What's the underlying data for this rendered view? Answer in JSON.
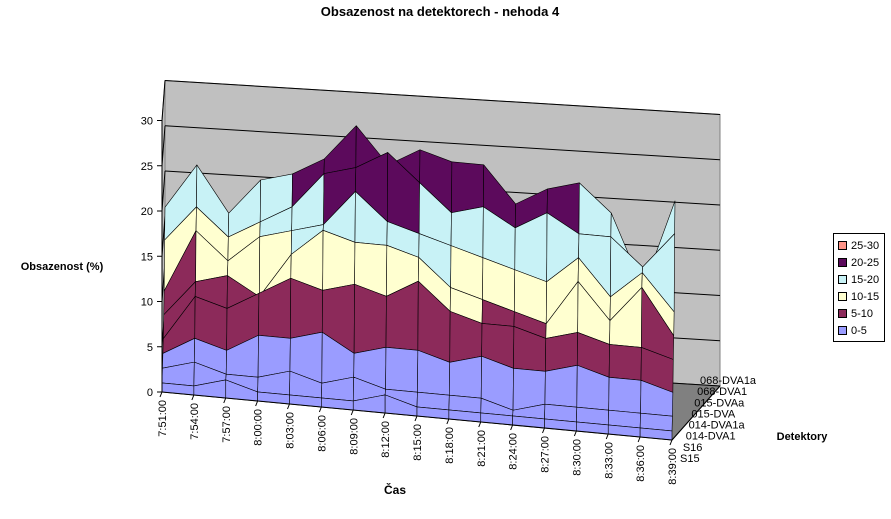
{
  "chart_data": {
    "type": "area",
    "subtype": "3d-surface",
    "title": "Obsazenost na detektorech - nehoda 4",
    "xlabel": "Čas",
    "ylabel": "Obsazenost (%)",
    "zlabel": "Detektory",
    "ylim": [
      0,
      30
    ],
    "yticks": [
      "0",
      "5",
      "10",
      "15",
      "20",
      "25",
      "30"
    ],
    "grid": true,
    "legend_position": "right",
    "categories": [
      "7:51:00",
      "7:54:00",
      "7:57:00",
      "8:00:00",
      "8:03:00",
      "8:06:00",
      "8:09:00",
      "8:12:00",
      "8:15:00",
      "8:18:00",
      "8:21:00",
      "8:24:00",
      "8:27:00",
      "8:30:00",
      "8:33:00",
      "8:36:00",
      "8:39:00"
    ],
    "detectors": [
      "S15",
      "S16",
      "014-DVA1",
      "014-DVA1a",
      "015-DVA",
      "015-DVAa",
      "068-DVA1",
      "068-DVA1a"
    ],
    "bands": [
      {
        "label": "25-30",
        "color": "#ff9488"
      },
      {
        "label": "20-25",
        "color": "#5c0a5c"
      },
      {
        "label": "15-20",
        "color": "#c8f2f6"
      },
      {
        "label": "10-15",
        "color": "#ffffd0"
      },
      {
        "label": "5-10",
        "color": "#8c2a5a"
      },
      {
        "label": "0-5",
        "color": "#9a9cff"
      }
    ],
    "series": [
      {
        "name": "068-DVA1a",
        "values": [
          16,
          21,
          16,
          20,
          21,
          23,
          27,
          23,
          25,
          24,
          24,
          20,
          22,
          23,
          20,
          12,
          22
        ]
      },
      {
        "name": "068-DVA1",
        "values": [
          13,
          17,
          14,
          16,
          18,
          22,
          23,
          25,
          22,
          19,
          20,
          18,
          20,
          18,
          18,
          15,
          19
        ]
      },
      {
        "name": "015-DVAa",
        "values": [
          8,
          15,
          12,
          15,
          16,
          17,
          21,
          18,
          17,
          16,
          15,
          14,
          13,
          16,
          12,
          15,
          11
        ]
      },
      {
        "name": "015-DVA",
        "values": [
          6,
          10,
          11,
          9,
          14,
          17,
          16,
          16,
          15,
          12,
          11,
          10,
          9,
          14,
          10,
          14,
          9
        ]
      },
      {
        "name": "014-DVA1a",
        "values": [
          4,
          9,
          8,
          10,
          12,
          11,
          12,
          11,
          13,
          10,
          9,
          9,
          8,
          9,
          8,
          8,
          7
        ]
      },
      {
        "name": "014-DVA1",
        "values": [
          3,
          5,
          4,
          6,
          6,
          7,
          5,
          6,
          6,
          5,
          6,
          5,
          5,
          6,
          5,
          5,
          4
        ]
      },
      {
        "name": "S16",
        "values": [
          2,
          3,
          2,
          2,
          3,
          2,
          3,
          2,
          2,
          2,
          2,
          1,
          2,
          2,
          2,
          2,
          2
        ]
      },
      {
        "name": "S15",
        "values": [
          1,
          1,
          2,
          1,
          1,
          1,
          1,
          2,
          1,
          1,
          1,
          1,
          1,
          1,
          1,
          1,
          1
        ]
      }
    ]
  }
}
